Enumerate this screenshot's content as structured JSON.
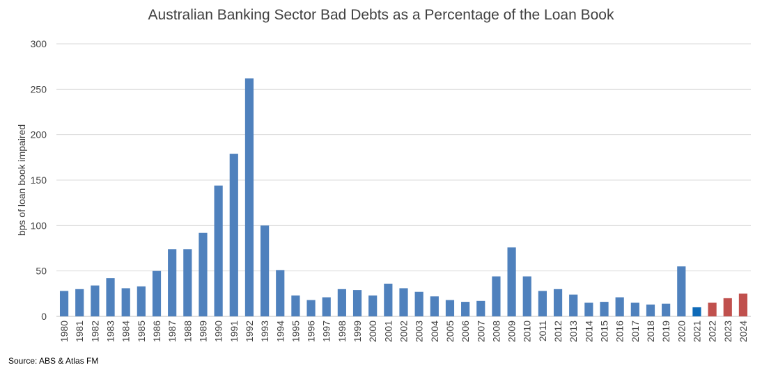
{
  "chart_data": {
    "type": "bar",
    "title": "Australian Banking Sector Bad Debts as a Percentage of the Loan Book",
    "ylabel": "bps of loan book impaired",
    "xlabel": "",
    "ylim": [
      0,
      300
    ],
    "yticks": [
      0,
      50,
      100,
      150,
      200,
      250,
      300
    ],
    "grid": true,
    "legend": "none",
    "categories": [
      "1980",
      "1981",
      "1982",
      "1983",
      "1984",
      "1985",
      "1986",
      "1987",
      "1988",
      "1989",
      "1990",
      "1991",
      "1992",
      "1993",
      "1994",
      "1995",
      "1996",
      "1997",
      "1998",
      "1999",
      "2000",
      "2001",
      "2002",
      "2003",
      "2004",
      "2005",
      "2006",
      "2007",
      "2008",
      "2009",
      "2010",
      "2011",
      "2012",
      "2013",
      "2014",
      "2015",
      "2016",
      "2017",
      "2018",
      "2019",
      "2020",
      "2021",
      "2022",
      "2023",
      "2024"
    ],
    "values": [
      28,
      30,
      34,
      42,
      31,
      33,
      50,
      74,
      74,
      92,
      144,
      179,
      262,
      100,
      51,
      23,
      18,
      21,
      30,
      29,
      23,
      36,
      31,
      27,
      22,
      18,
      16,
      17,
      44,
      76,
      44,
      28,
      30,
      24,
      15,
      16,
      21,
      15,
      13,
      14,
      55,
      10,
      15,
      20,
      25
    ],
    "bar_colors": [
      "#4f81bd",
      "#4f81bd",
      "#4f81bd",
      "#4f81bd",
      "#4f81bd",
      "#4f81bd",
      "#4f81bd",
      "#4f81bd",
      "#4f81bd",
      "#4f81bd",
      "#4f81bd",
      "#4f81bd",
      "#4f81bd",
      "#4f81bd",
      "#4f81bd",
      "#4f81bd",
      "#4f81bd",
      "#4f81bd",
      "#4f81bd",
      "#4f81bd",
      "#4f81bd",
      "#4f81bd",
      "#4f81bd",
      "#4f81bd",
      "#4f81bd",
      "#4f81bd",
      "#4f81bd",
      "#4f81bd",
      "#4f81bd",
      "#4f81bd",
      "#4f81bd",
      "#4f81bd",
      "#4f81bd",
      "#4f81bd",
      "#4f81bd",
      "#4f81bd",
      "#4f81bd",
      "#4f81bd",
      "#4f81bd",
      "#4f81bd",
      "#4f81bd",
      "#0e6ab8",
      "#c0504d",
      "#c0504d",
      "#c0504d"
    ]
  },
  "footer": {
    "source": "Source: ABS & Atlas FM"
  },
  "colors": {
    "grid": "#d9d9d9",
    "text": "#404040"
  }
}
